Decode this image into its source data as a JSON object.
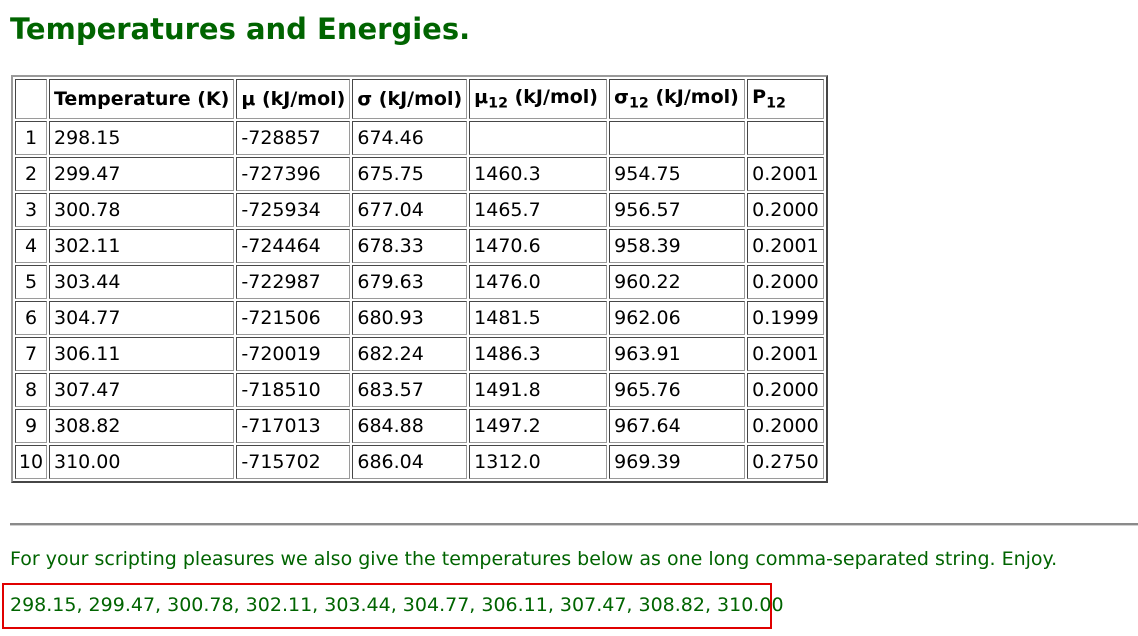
{
  "page": {
    "title": "Temperatures and Energies.",
    "note": "For your scripting pleasures we also give the temperatures below as one long comma-separated string. Enjoy.",
    "temps_string": "298.15, 299.47, 300.78, 302.11, 303.44, 304.77, 306.11, 307.47, 308.82, 310.00",
    "title_color": "#006400",
    "highlight_color": "#e00000"
  },
  "table": {
    "headers": {
      "index": "",
      "temperature": "Temperature (K)",
      "mu": "μ (kJ/mol)",
      "sigma": "σ (kJ/mol)",
      "mu12_sym": "μ",
      "mu12_sub": "12",
      "mu12_unit": " (kJ/mol)",
      "sigma12_sym": "σ",
      "sigma12_sub": "12",
      "sigma12_unit": " (kJ/mol)",
      "p12_sym": "P",
      "p12_sub": "12"
    },
    "rows": [
      {
        "i": "1",
        "t": "298.15",
        "mu": "-728857",
        "s": "674.46",
        "mu12": "",
        "s12": "",
        "p": ""
      },
      {
        "i": "2",
        "t": "299.47",
        "mu": "-727396",
        "s": "675.75",
        "mu12": "1460.3",
        "s12": "954.75",
        "p": "0.2001"
      },
      {
        "i": "3",
        "t": "300.78",
        "mu": "-725934",
        "s": "677.04",
        "mu12": "1465.7",
        "s12": "956.57",
        "p": "0.2000"
      },
      {
        "i": "4",
        "t": "302.11",
        "mu": "-724464",
        "s": "678.33",
        "mu12": "1470.6",
        "s12": "958.39",
        "p": "0.2001"
      },
      {
        "i": "5",
        "t": "303.44",
        "mu": "-722987",
        "s": "679.63",
        "mu12": "1476.0",
        "s12": "960.22",
        "p": "0.2000"
      },
      {
        "i": "6",
        "t": "304.77",
        "mu": "-721506",
        "s": "680.93",
        "mu12": "1481.5",
        "s12": "962.06",
        "p": "0.1999"
      },
      {
        "i": "7",
        "t": "306.11",
        "mu": "-720019",
        "s": "682.24",
        "mu12": "1486.3",
        "s12": "963.91",
        "p": "0.2001"
      },
      {
        "i": "8",
        "t": "307.47",
        "mu": "-718510",
        "s": "683.57",
        "mu12": "1491.8",
        "s12": "965.76",
        "p": "0.2000"
      },
      {
        "i": "9",
        "t": "308.82",
        "mu": "-717013",
        "s": "684.88",
        "mu12": "1497.2",
        "s12": "967.64",
        "p": "0.2000"
      },
      {
        "i": "10",
        "t": "310.00",
        "mu": "-715702",
        "s": "686.04",
        "mu12": "1312.0",
        "s12": "969.39",
        "p": "0.2750"
      }
    ]
  }
}
